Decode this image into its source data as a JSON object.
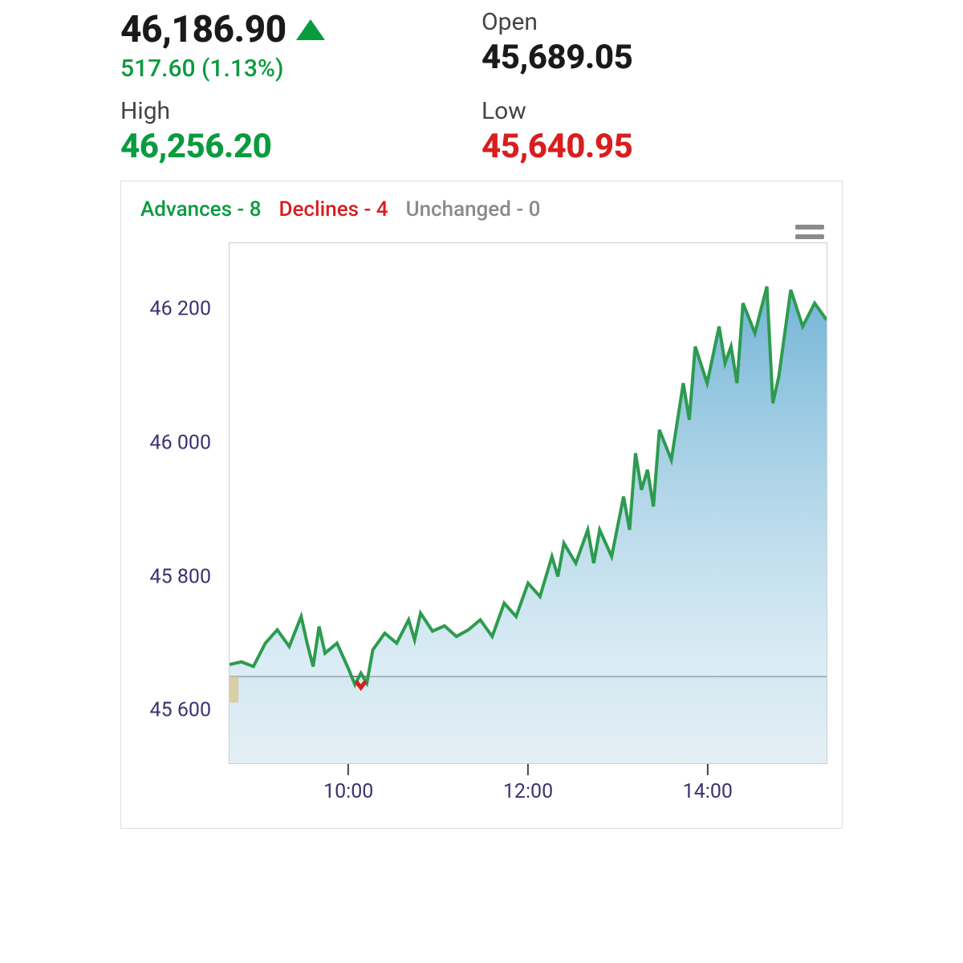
{
  "quote": {
    "price": "46,186.90",
    "change": "517.60 (1.13%)",
    "open_label": "Open",
    "open_value": "45,689.05",
    "high_label": "High",
    "high_value": "46,256.20",
    "low_label": "Low",
    "low_value": "45,640.95",
    "colors": {
      "positive": "#0a9b3f",
      "negative": "#d81e1e",
      "neutral": "#1a1a1a",
      "muted": "#8a8a8a"
    }
  },
  "breadth": {
    "advances_label": "Advances - 8",
    "declines_label": "Declines - 4",
    "unchanged_label": "Unchanged - 0"
  },
  "chart": {
    "type": "area",
    "x_label_format": "HH:mm",
    "x_ticks": [
      {
        "pos_pct": 20,
        "label": "10:00"
      },
      {
        "pos_pct": 50,
        "label": "12:00"
      },
      {
        "pos_pct": 80,
        "label": "14:00"
      }
    ],
    "y_min": 45520,
    "y_max": 46300,
    "y_ticks": [
      45600,
      45800,
      46000,
      46200
    ],
    "line_color": "#2d9b4f",
    "line_width": 2,
    "area_gradient_top": "#5aa7cf",
    "area_gradient_bottom": "#d9ecf5",
    "axis_label_color": "#3c3270",
    "axis_label_fontsize": 25,
    "border_color": "#cfcfcf",
    "prev_close_line_y": 45650,
    "prev_close_line_color": "#333333",
    "open_marker_color": "#f5a623",
    "background": "#ffffff",
    "series": [
      [
        0,
        45668
      ],
      [
        2,
        45672
      ],
      [
        4,
        45665
      ],
      [
        6,
        45700
      ],
      [
        8,
        45720
      ],
      [
        10,
        45695
      ],
      [
        12,
        45740
      ],
      [
        13,
        45700
      ],
      [
        14,
        45665
      ],
      [
        15,
        45725
      ],
      [
        16,
        45685
      ],
      [
        18,
        45700
      ],
      [
        20,
        45660
      ],
      [
        21,
        45638
      ],
      [
        22,
        45655
      ],
      [
        23,
        45640
      ],
      [
        24,
        45690
      ],
      [
        26,
        45715
      ],
      [
        28,
        45700
      ],
      [
        30,
        45735
      ],
      [
        31,
        45705
      ],
      [
        32,
        45745
      ],
      [
        34,
        45718
      ],
      [
        36,
        45726
      ],
      [
        38,
        45710
      ],
      [
        40,
        45720
      ],
      [
        42,
        45735
      ],
      [
        44,
        45710
      ],
      [
        46,
        45760
      ],
      [
        48,
        45740
      ],
      [
        50,
        45790
      ],
      [
        52,
        45770
      ],
      [
        54,
        45830
      ],
      [
        55,
        45800
      ],
      [
        56,
        45850
      ],
      [
        58,
        45820
      ],
      [
        60,
        45870
      ],
      [
        61,
        45820
      ],
      [
        62,
        45870
      ],
      [
        64,
        45830
      ],
      [
        66,
        45920
      ],
      [
        67,
        45870
      ],
      [
        68,
        45985
      ],
      [
        69,
        45930
      ],
      [
        70,
        45960
      ],
      [
        71,
        45905
      ],
      [
        72,
        46020
      ],
      [
        74,
        45975
      ],
      [
        76,
        46090
      ],
      [
        77,
        46035
      ],
      [
        78,
        46145
      ],
      [
        80,
        46090
      ],
      [
        82,
        46175
      ],
      [
        83,
        46120
      ],
      [
        84,
        46145
      ],
      [
        85,
        46090
      ],
      [
        86,
        46210
      ],
      [
        88,
        46165
      ],
      [
        90,
        46235
      ],
      [
        91,
        46060
      ],
      [
        92,
        46100
      ],
      [
        94,
        46230
      ],
      [
        96,
        46175
      ],
      [
        98,
        46210
      ],
      [
        100,
        46185
      ]
    ]
  }
}
